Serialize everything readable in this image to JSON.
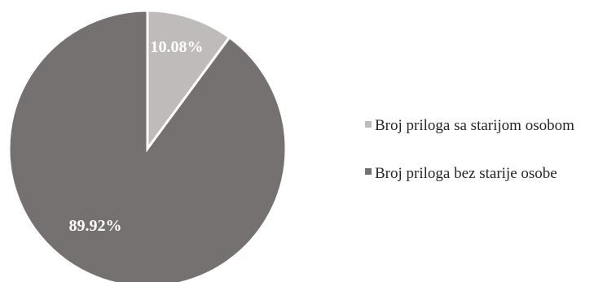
{
  "chart_data": {
    "type": "pie",
    "title": "",
    "start_angle_deg": 0,
    "direction": "clockwise",
    "legend_position": "right",
    "slices": [
      {
        "label": "Broj priloga sa starijom osobom",
        "value": 10.08,
        "data_label": "10.08%",
        "color": "#bfbbbb"
      },
      {
        "label": "Broj priloga bez starije osobe",
        "value": 89.92,
        "data_label": "89.92%",
        "color": "#757171"
      }
    ]
  }
}
